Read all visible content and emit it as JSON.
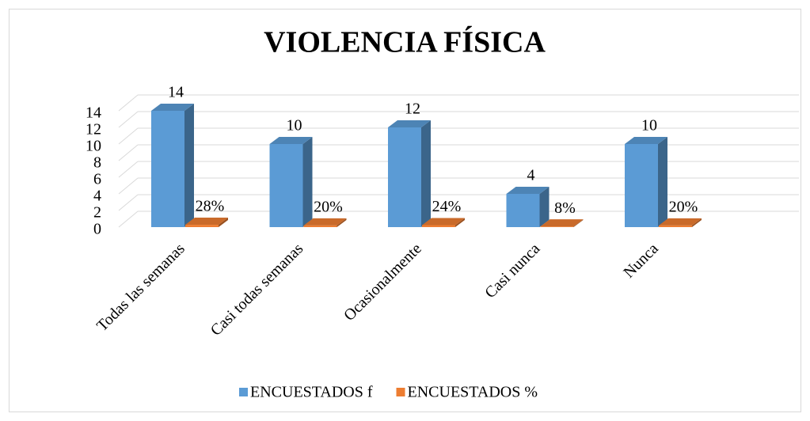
{
  "chart_data": {
    "type": "bar3d",
    "title": "VIOLENCIA FÍSICA",
    "categories": [
      "Todas las semanas",
      "Casi todas semanas",
      "Ocasionalmente",
      "Casi nunca",
      "Nunca"
    ],
    "series": [
      {
        "name": "ENCUESTADOS f",
        "color": "#5b9bd5",
        "values": [
          14,
          10,
          12,
          4,
          10
        ]
      },
      {
        "name": "ENCUESTADOS %",
        "color": "#ed7d31",
        "values": [
          0.28,
          0.2,
          0.24,
          0.08,
          0.2
        ],
        "value_labels": [
          "28%",
          "20%",
          "24%",
          "8%",
          "20%"
        ]
      }
    ],
    "ylim": [
      0,
      14
    ],
    "yticks": [
      0,
      2,
      4,
      6,
      8,
      10,
      12,
      14
    ],
    "grid": true,
    "legend": "bottom"
  }
}
